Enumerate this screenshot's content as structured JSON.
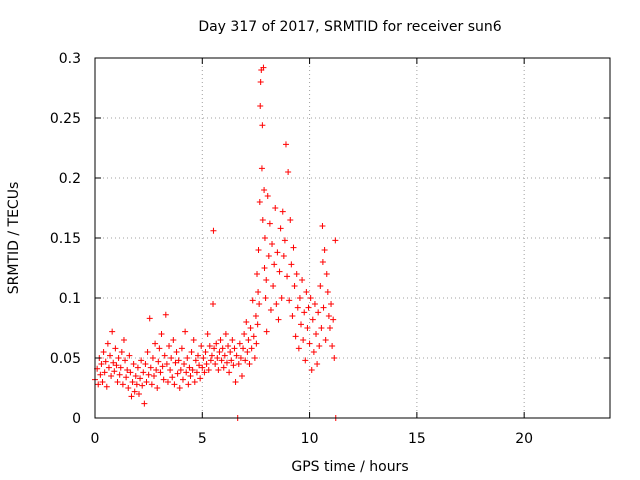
{
  "colors": {
    "series": "#ff0000",
    "axis": "#000000",
    "grid": "#a0a0a0",
    "background": "#ffffff"
  },
  "chart_data": {
    "type": "scatter",
    "title": "Day 317 of 2017, SRMTID for receiver sun6",
    "xlabel": "GPS time / hours",
    "ylabel": "SRMTID / TECUs",
    "xlim": [
      0,
      24
    ],
    "ylim": [
      0,
      0.3
    ],
    "xticks": [
      0,
      5,
      10,
      15,
      20
    ],
    "xtick_labels": [
      "0",
      "5",
      "10",
      "15",
      "20"
    ],
    "yticks": [
      0,
      0.05,
      0.1,
      0.15,
      0.2,
      0.25,
      0.3
    ],
    "ytick_labels": [
      "0",
      "0.05",
      "0.1",
      "0.15",
      "0.2",
      "0.25",
      "0.3"
    ],
    "grid": true,
    "marker": "+",
    "series": [
      {
        "name": "SRMTID",
        "points": [
          [
            0.0,
            0.032
          ],
          [
            0.1,
            0.041
          ],
          [
            0.15,
            0.028
          ],
          [
            0.2,
            0.05
          ],
          [
            0.25,
            0.036
          ],
          [
            0.3,
            0.045
          ],
          [
            0.35,
            0.03
          ],
          [
            0.4,
            0.055
          ],
          [
            0.45,
            0.038
          ],
          [
            0.5,
            0.047
          ],
          [
            0.55,
            0.026
          ],
          [
            0.6,
            0.062
          ],
          [
            0.65,
            0.042
          ],
          [
            0.7,
            0.052
          ],
          [
            0.75,
            0.035
          ],
          [
            0.8,
            0.072
          ],
          [
            0.85,
            0.046
          ],
          [
            0.9,
            0.039
          ],
          [
            0.95,
            0.058
          ],
          [
            1.0,
            0.044
          ],
          [
            1.05,
            0.03
          ],
          [
            1.1,
            0.05
          ],
          [
            1.15,
            0.036
          ],
          [
            1.2,
            0.042
          ],
          [
            1.25,
            0.055
          ],
          [
            1.3,
            0.028
          ],
          [
            1.35,
            0.065
          ],
          [
            1.4,
            0.048
          ],
          [
            1.45,
            0.034
          ],
          [
            1.5,
            0.04
          ],
          [
            1.55,
            0.025
          ],
          [
            1.6,
            0.052
          ],
          [
            1.65,
            0.038
          ],
          [
            1.7,
            0.018
          ],
          [
            1.75,
            0.03
          ],
          [
            1.8,
            0.045
          ],
          [
            1.85,
            0.022
          ],
          [
            1.9,
            0.035
          ],
          [
            1.95,
            0.028
          ],
          [
            2.0,
            0.042
          ],
          [
            2.05,
            0.02
          ],
          [
            2.1,
            0.033
          ],
          [
            2.15,
            0.048
          ],
          [
            2.2,
            0.027
          ],
          [
            2.25,
            0.038
          ],
          [
            2.3,
            0.012
          ],
          [
            2.35,
            0.045
          ],
          [
            2.4,
            0.03
          ],
          [
            2.45,
            0.055
          ],
          [
            2.5,
            0.036
          ],
          [
            2.55,
            0.083
          ],
          [
            2.6,
            0.042
          ],
          [
            2.65,
            0.028
          ],
          [
            2.7,
            0.05
          ],
          [
            2.75,
            0.035
          ],
          [
            2.8,
            0.062
          ],
          [
            2.85,
            0.04
          ],
          [
            2.9,
            0.025
          ],
          [
            2.95,
            0.047
          ],
          [
            3.0,
            0.058
          ],
          [
            3.05,
            0.038
          ],
          [
            3.1,
            0.07
          ],
          [
            3.15,
            0.043
          ],
          [
            3.2,
            0.032
          ],
          [
            3.25,
            0.052
          ],
          [
            3.3,
            0.086
          ],
          [
            3.35,
            0.045
          ],
          [
            3.4,
            0.03
          ],
          [
            3.45,
            0.06
          ],
          [
            3.5,
            0.04
          ],
          [
            3.55,
            0.05
          ],
          [
            3.6,
            0.034
          ],
          [
            3.65,
            0.065
          ],
          [
            3.7,
            0.028
          ],
          [
            3.75,
            0.046
          ],
          [
            3.8,
            0.055
          ],
          [
            3.85,
            0.037
          ],
          [
            3.9,
            0.048
          ],
          [
            3.95,
            0.025
          ],
          [
            4.0,
            0.04
          ],
          [
            4.05,
            0.058
          ],
          [
            4.1,
            0.032
          ],
          [
            4.15,
            0.045
          ],
          [
            4.2,
            0.072
          ],
          [
            4.25,
            0.038
          ],
          [
            4.3,
            0.05
          ],
          [
            4.35,
            0.028
          ],
          [
            4.4,
            0.042
          ],
          [
            4.45,
            0.035
          ],
          [
            4.5,
            0.055
          ],
          [
            4.55,
            0.04
          ],
          [
            4.6,
            0.065
          ],
          [
            4.65,
            0.03
          ],
          [
            4.7,
            0.048
          ],
          [
            4.75,
            0.038
          ],
          [
            4.8,
            0.052
          ],
          [
            4.85,
            0.044
          ],
          [
            4.9,
            0.033
          ],
          [
            4.95,
            0.06
          ],
          [
            5.0,
            0.042
          ],
          [
            5.05,
            0.05
          ],
          [
            5.1,
            0.038
          ],
          [
            5.15,
            0.055
          ],
          [
            5.2,
            0.045
          ],
          [
            5.25,
            0.07
          ],
          [
            5.3,
            0.04
          ],
          [
            5.35,
            0.06
          ],
          [
            5.4,
            0.048
          ],
          [
            5.45,
            0.052
          ],
          [
            5.5,
            0.095
          ],
          [
            5.52,
            0.156
          ],
          [
            5.55,
            0.058
          ],
          [
            5.6,
            0.045
          ],
          [
            5.65,
            0.062
          ],
          [
            5.7,
            0.05
          ],
          [
            5.75,
            0.04
          ],
          [
            5.8,
            0.055
          ],
          [
            5.85,
            0.065
          ],
          [
            5.9,
            0.048
          ],
          [
            5.95,
            0.058
          ],
          [
            6.0,
            0.042
          ],
          [
            6.05,
            0.052
          ],
          [
            6.1,
            0.07
          ],
          [
            6.15,
            0.046
          ],
          [
            6.2,
            0.06
          ],
          [
            6.25,
            0.038
          ],
          [
            6.3,
            0.055
          ],
          [
            6.35,
            0.048
          ],
          [
            6.4,
            0.065
          ],
          [
            6.45,
            0.044
          ],
          [
            6.5,
            0.058
          ],
          [
            6.55,
            0.03
          ],
          [
            6.6,
            0.052
          ],
          [
            6.65,
            0.0
          ],
          [
            6.7,
            0.045
          ],
          [
            6.75,
            0.062
          ],
          [
            6.8,
            0.05
          ],
          [
            6.85,
            0.035
          ],
          [
            6.9,
            0.058
          ],
          [
            6.95,
            0.07
          ],
          [
            7.0,
            0.048
          ],
          [
            7.05,
            0.08
          ],
          [
            7.1,
            0.055
          ],
          [
            7.15,
            0.065
          ],
          [
            7.2,
            0.045
          ],
          [
            7.25,
            0.075
          ],
          [
            7.3,
            0.058
          ],
          [
            7.35,
            0.098
          ],
          [
            7.4,
            0.068
          ],
          [
            7.45,
            0.05
          ],
          [
            7.5,
            0.085
          ],
          [
            7.52,
            0.062
          ],
          [
            7.55,
            0.12
          ],
          [
            7.58,
            0.078
          ],
          [
            7.6,
            0.105
          ],
          [
            7.62,
            0.14
          ],
          [
            7.65,
            0.095
          ],
          [
            7.68,
            0.18
          ],
          [
            7.7,
            0.26
          ],
          [
            7.72,
            0.28
          ],
          [
            7.75,
            0.29
          ],
          [
            7.78,
            0.208
          ],
          [
            7.8,
            0.244
          ],
          [
            7.82,
            0.165
          ],
          [
            7.85,
            0.292
          ],
          [
            7.88,
            0.19
          ],
          [
            7.9,
            0.125
          ],
          [
            7.92,
            0.15
          ],
          [
            7.95,
            0.1
          ],
          [
            7.98,
            0.115
          ],
          [
            8.0,
            0.072
          ],
          [
            8.05,
            0.185
          ],
          [
            8.1,
            0.135
          ],
          [
            8.15,
            0.162
          ],
          [
            8.2,
            0.09
          ],
          [
            8.25,
            0.145
          ],
          [
            8.3,
            0.11
          ],
          [
            8.35,
            0.128
          ],
          [
            8.4,
            0.175
          ],
          [
            8.45,
            0.095
          ],
          [
            8.5,
            0.138
          ],
          [
            8.55,
            0.082
          ],
          [
            8.6,
            0.122
          ],
          [
            8.65,
            0.158
          ],
          [
            8.7,
            0.1
          ],
          [
            8.75,
            0.172
          ],
          [
            8.8,
            0.135
          ],
          [
            8.85,
            0.148
          ],
          [
            8.9,
            0.228
          ],
          [
            8.95,
            0.118
          ],
          [
            9.0,
            0.205
          ],
          [
            9.05,
            0.098
          ],
          [
            9.1,
            0.165
          ],
          [
            9.15,
            0.128
          ],
          [
            9.2,
            0.085
          ],
          [
            9.25,
            0.142
          ],
          [
            9.3,
            0.11
          ],
          [
            9.35,
            0.068
          ],
          [
            9.4,
            0.12
          ],
          [
            9.45,
            0.092
          ],
          [
            9.5,
            0.058
          ],
          [
            9.55,
            0.1
          ],
          [
            9.6,
            0.078
          ],
          [
            9.65,
            0.115
          ],
          [
            9.7,
            0.065
          ],
          [
            9.75,
            0.088
          ],
          [
            9.8,
            0.048
          ],
          [
            9.85,
            0.105
          ],
          [
            9.9,
            0.075
          ],
          [
            9.95,
            0.092
          ],
          [
            10.0,
            0.062
          ],
          [
            10.05,
            0.1
          ],
          [
            10.1,
            0.04
          ],
          [
            10.15,
            0.082
          ],
          [
            10.2,
            0.055
          ],
          [
            10.25,
            0.095
          ],
          [
            10.3,
            0.07
          ],
          [
            10.35,
            0.045
          ],
          [
            10.4,
            0.088
          ],
          [
            10.45,
            0.06
          ],
          [
            10.5,
            0.11
          ],
          [
            10.55,
            0.075
          ],
          [
            10.6,
            0.16
          ],
          [
            10.62,
            0.13
          ],
          [
            10.65,
            0.092
          ],
          [
            10.7,
            0.14
          ],
          [
            10.75,
            0.065
          ],
          [
            10.8,
            0.12
          ],
          [
            10.85,
            0.105
          ],
          [
            10.9,
            0.085
          ],
          [
            10.95,
            0.075
          ],
          [
            11.0,
            0.095
          ],
          [
            11.05,
            0.06
          ],
          [
            11.1,
            0.082
          ],
          [
            11.15,
            0.05
          ],
          [
            11.2,
            0.148
          ],
          [
            11.22,
            0.0
          ]
        ]
      }
    ]
  }
}
